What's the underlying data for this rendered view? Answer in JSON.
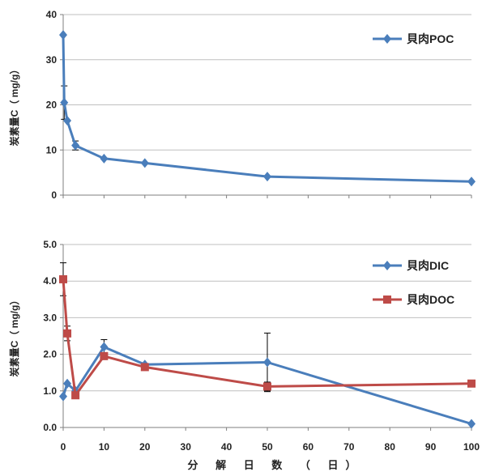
{
  "colors": {
    "poc": "#4a7ebb",
    "dic": "#4a7ebb",
    "doc": "#be4b48",
    "grid": "#bfbfbf",
    "axis": "#7f7f7f"
  },
  "xaxis": {
    "label": "分 解 日 数 （ 日）",
    "xlim": [
      0,
      100
    ],
    "ticks": [
      "0",
      "10",
      "20",
      "30",
      "40",
      "50",
      "60",
      "70",
      "80",
      "90",
      "100"
    ]
  },
  "chart_data": [
    {
      "type": "line",
      "ylabel": "炭素量C（ mg/g）",
      "ylim": [
        0,
        40
      ],
      "yticks": [
        "0",
        "10",
        "20",
        "30",
        "40"
      ],
      "grid": true,
      "legend": "top-right",
      "series": [
        {
          "name": "貝肉POC",
          "marker": "diamond",
          "x": [
            0,
            0.25,
            1,
            3,
            10,
            20,
            50,
            100
          ],
          "y": [
            35.5,
            20.5,
            16.5,
            11.0,
            8.1,
            7.1,
            4.1,
            3.0
          ],
          "err": [
            0,
            3.7,
            0,
            1.0,
            0,
            0,
            0,
            0
          ]
        }
      ]
    },
    {
      "type": "line",
      "ylabel": "炭素量C（ mg/g）",
      "ylim": [
        0,
        5
      ],
      "yticks": [
        "0.0",
        "1.0",
        "2.0",
        "3.0",
        "4.0",
        "5.0"
      ],
      "grid": true,
      "legend": "top-right",
      "series": [
        {
          "name": "貝肉DIC",
          "marker": "diamond",
          "x": [
            0,
            1,
            3,
            10,
            20,
            50,
            100
          ],
          "y": [
            0.85,
            1.2,
            1.0,
            2.2,
            1.72,
            1.78,
            0.1
          ],
          "err": [
            0,
            0,
            0,
            0.2,
            0,
            0.8,
            0
          ]
        },
        {
          "name": "貝肉DOC",
          "marker": "square",
          "x": [
            0,
            1,
            3,
            10,
            20,
            50,
            100
          ],
          "y": [
            4.05,
            2.57,
            0.88,
            1.95,
            1.65,
            1.12,
            1.2
          ],
          "err": [
            0.45,
            0.2,
            0,
            0,
            0,
            0.12,
            0
          ]
        }
      ]
    }
  ]
}
